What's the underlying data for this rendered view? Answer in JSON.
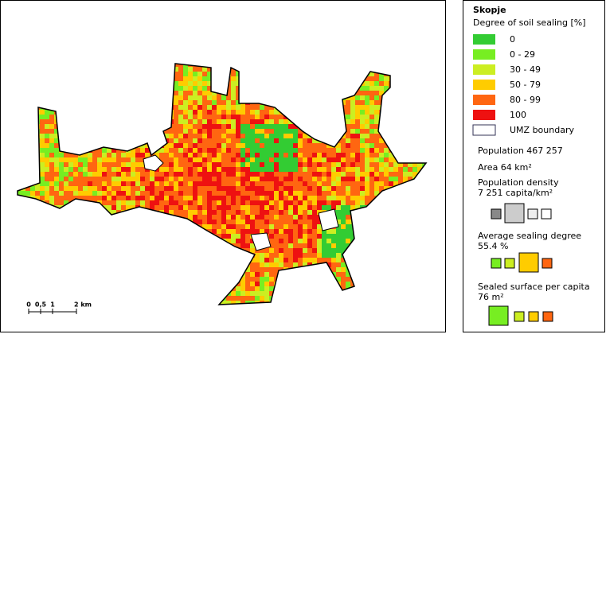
{
  "map": {
    "title": "Skopje",
    "subtitle": "Degree of soil sealing [%]",
    "legend": [
      {
        "label": "0",
        "color": "#33cc33"
      },
      {
        "label": "0 - 29",
        "color": "#77ee22"
      },
      {
        "label": "30 - 49",
        "color": "#ccee22"
      },
      {
        "label": "50 - 79",
        "color": "#ffcc00"
      },
      {
        "label": "80 - 99",
        "color": "#ff6611"
      },
      {
        "label": "100",
        "color": "#ee1111"
      },
      {
        "label": "UMZ boundary",
        "color": "#ffffff"
      }
    ],
    "population": "Population 467 257",
    "area": "Area 64 km²",
    "density_title": "Population density",
    "density_value": "7 251 capita/km²",
    "sealing_title": "Average sealing degree",
    "sealing_value": "55.4 %",
    "per_capita_title": "Sealed surface per capita",
    "per_capita_value": "76 m²",
    "scale": [
      "0",
      "0,5",
      "1",
      "2 km"
    ]
  }
}
